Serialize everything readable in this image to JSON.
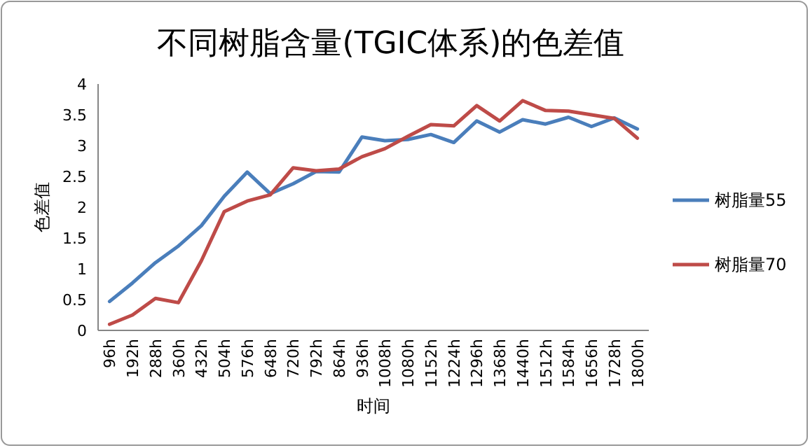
{
  "chart_data": {
    "type": "line",
    "title": "不同树脂含量(TGIC体系)的色差值",
    "xlabel": "时间",
    "ylabel": "色差值",
    "categories": [
      "96h",
      "192h",
      "288h",
      "360h",
      "432h",
      "504h",
      "576h",
      "648h",
      "720h",
      "792h",
      "864h",
      "936h",
      "1008h",
      "1080h",
      "1152h",
      "1224h",
      "1296h",
      "1368h",
      "1440h",
      "1512h",
      "1584h",
      "1656h",
      "1728h",
      "1800h"
    ],
    "series": [
      {
        "name": "树脂量55",
        "color": "#4a7ebb",
        "values": [
          0.47,
          0.77,
          1.1,
          1.37,
          1.7,
          2.18,
          2.57,
          2.22,
          2.38,
          2.58,
          2.57,
          3.14,
          3.08,
          3.1,
          3.18,
          3.05,
          3.4,
          3.22,
          3.42,
          3.35,
          3.46,
          3.31,
          3.45,
          3.27
        ]
      },
      {
        "name": "树脂量70",
        "color": "#be4b48",
        "values": [
          0.1,
          0.25,
          0.52,
          0.45,
          1.13,
          1.93,
          2.1,
          2.2,
          2.64,
          2.59,
          2.62,
          2.82,
          2.95,
          3.15,
          3.34,
          3.32,
          3.65,
          3.4,
          3.73,
          3.57,
          3.56,
          3.5,
          3.44,
          3.12
        ]
      }
    ],
    "ylim": [
      0,
      4
    ],
    "yticks": [
      0,
      0.5,
      1,
      1.5,
      2,
      2.5,
      3,
      3.5,
      4
    ],
    "legend": "right",
    "grid": false,
    "marker": "none",
    "line_style": "solid"
  }
}
